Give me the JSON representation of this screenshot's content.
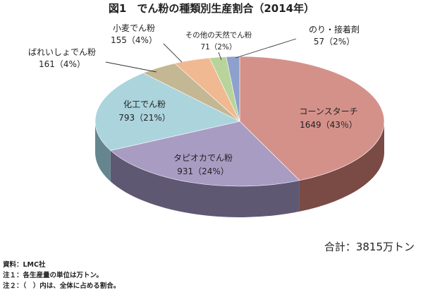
{
  "chart_data": {
    "type": "pie",
    "title": "図1　でん粉の種類別生産割合（2014年）",
    "unit": "万トン",
    "slices": [
      {
        "name": "コーンスターチ",
        "value": 1649,
        "percent": 43,
        "value_label": "1649（43％）",
        "color": "#d4918a",
        "side": "#7a4a45"
      },
      {
        "name": "タピオカでん粉",
        "value": 931,
        "percent": 24,
        "value_label": "931（24%）",
        "color": "#a99cc3",
        "side": "#5f5873"
      },
      {
        "name": "化工でん粉",
        "value": 793,
        "percent": 21,
        "value_label": "793（21%）",
        "color": "#acd4dd",
        "side": "#65868e"
      },
      {
        "name": "ばれいしょでん粉",
        "value": 161,
        "percent": 4,
        "value_label": "161（4%）",
        "color": "#c4b894",
        "side": "#7d7457"
      },
      {
        "name": "小麦でん粉",
        "value": 155,
        "percent": 4,
        "value_label": "155（4%）",
        "color": "#f0b991",
        "side": "#9b7456"
      },
      {
        "name": "その他の天然でん粉",
        "value": 71,
        "percent": 2,
        "value_label": "71（2%）",
        "color": "#b9d49a",
        "side": "#748a5c"
      },
      {
        "name": "のり・接着剤",
        "value": 57,
        "percent": 2,
        "value_label": "57（2%）",
        "color": "#8ea0cc",
        "side": "#56628a"
      }
    ],
    "total_label": "合計：3815万トン"
  },
  "notes": {
    "source": "資料：LMC社",
    "note1": "注１：各生産量の単位は万トン。",
    "note2": "注２：（　）内は、全体に占める割合。"
  }
}
